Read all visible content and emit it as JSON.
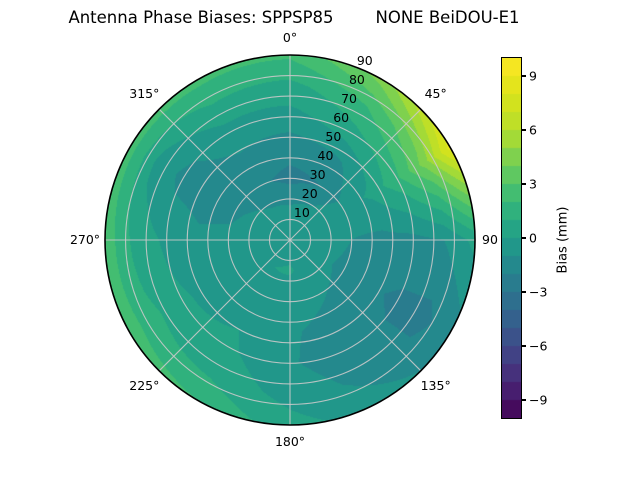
{
  "title": "Antenna Phase Biases: SPPSP85        NONE BeiDOU-E1",
  "colors": {
    "background": "#ffffff",
    "grid_line": "#c9c9c9",
    "spine": "#000000",
    "text": "#000000",
    "viridis_stops": [
      "#440154",
      "#482878",
      "#3e4a89",
      "#31688e",
      "#26828e",
      "#1f9e89",
      "#35b779",
      "#6dcd59",
      "#b5de2b",
      "#dce319",
      "#fde725"
    ]
  },
  "polar": {
    "angle_labels": [
      {
        "label": "0°",
        "angle_deg": 0
      },
      {
        "label": "45°",
        "angle_deg": 45
      },
      {
        "label": "90",
        "angle_deg": 90
      },
      {
        "label": "135°",
        "angle_deg": 135
      },
      {
        "label": "180°",
        "angle_deg": 180
      },
      {
        "label": "225°",
        "angle_deg": 225
      },
      {
        "label": "270°",
        "angle_deg": 270
      },
      {
        "label": "315°",
        "angle_deg": 315
      }
    ],
    "radial_labels": [
      {
        "label": "10",
        "zenith": 10
      },
      {
        "label": "20",
        "zenith": 20
      },
      {
        "label": "30",
        "zenith": 30
      },
      {
        "label": "40",
        "zenith": 40
      },
      {
        "label": "50",
        "zenith": 50
      },
      {
        "label": "60",
        "zenith": 60
      },
      {
        "label": "70",
        "zenith": 70
      },
      {
        "label": "80",
        "zenith": 80
      },
      {
        "label": "90",
        "zenith": 90
      }
    ],
    "radial_label_azimuth_deg": 22.5
  },
  "colorbar": {
    "label": "Bias (mm)",
    "vmin": -10,
    "vmax": 10,
    "band_step": 1,
    "ticks": [
      {
        "value": 9,
        "label": "9"
      },
      {
        "value": 6,
        "label": "6"
      },
      {
        "value": 3,
        "label": "3"
      },
      {
        "value": 0,
        "label": "0"
      },
      {
        "value": -3,
        "label": "−3"
      },
      {
        "value": -6,
        "label": "−6"
      },
      {
        "value": -9,
        "label": "−9"
      }
    ]
  },
  "chart_data": {
    "type": "heatmap",
    "projection": "polar",
    "title": "Antenna Phase Biases: SPPSP85 NONE BeiDOU-E1",
    "colorbar_label": "Bias (mm)",
    "units": "mm",
    "vmin": -10,
    "vmax": 10,
    "contour_step": 1,
    "azimuth_zero": "top",
    "azimuth_direction": "clockwise",
    "zenith_range": [
      0,
      90
    ],
    "azimuth_deg": [
      0,
      30,
      60,
      90,
      120,
      150,
      180,
      210,
      240,
      270,
      300,
      330
    ],
    "zenith_deg": [
      0,
      15,
      30,
      45,
      60,
      75,
      90
    ],
    "bias_mm": [
      [
        -0.4,
        -0.4,
        -0.4,
        -0.4,
        -0.4,
        -0.4,
        -0.4,
        -0.4,
        -0.4,
        -0.4,
        -0.4,
        -0.4
      ],
      [
        -0.8,
        -0.6,
        -0.4,
        -0.5,
        -0.6,
        -0.3,
        0.1,
        0.0,
        -0.3,
        -0.5,
        -0.6,
        -0.8
      ],
      [
        -2.3,
        -2.0,
        -0.6,
        -1.0,
        -1.3,
        -0.9,
        -0.6,
        -0.3,
        -0.5,
        -0.8,
        -1.2,
        -1.8
      ],
      [
        -1.6,
        -1.2,
        0.2,
        -1.3,
        -1.8,
        -1.3,
        -0.9,
        -0.1,
        -0.4,
        -0.8,
        -1.4,
        -1.2
      ],
      [
        -0.4,
        0.6,
        1.8,
        -1.3,
        -2.2,
        -1.6,
        -0.9,
        0.2,
        0.2,
        -0.2,
        -1.3,
        -0.4
      ],
      [
        0.7,
        2.0,
        4.4,
        -1.0,
        -2.3,
        -1.3,
        -0.4,
        0.8,
        1.2,
        0.6,
        -0.2,
        0.9
      ],
      [
        2.2,
        4.4,
        8.4,
        0.3,
        -1.4,
        -0.6,
        0.4,
        2.0,
        2.6,
        2.7,
        2.5,
        2.3
      ]
    ]
  }
}
